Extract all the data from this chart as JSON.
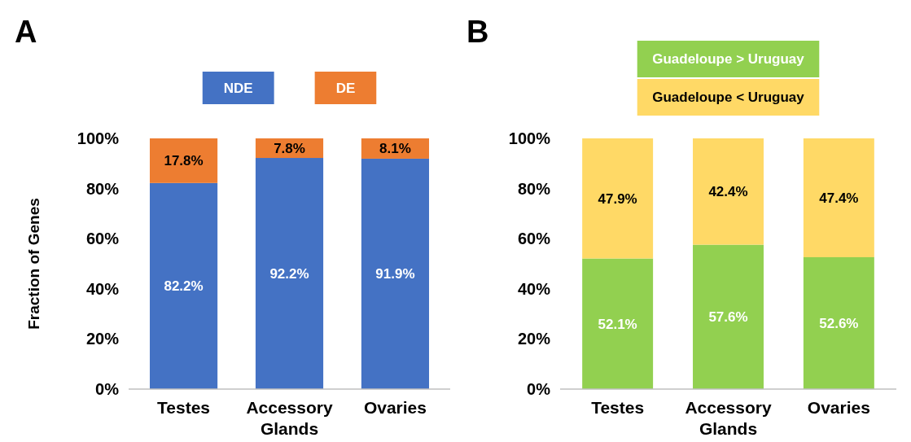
{
  "chart_data": [
    {
      "type": "bar",
      "title": "A",
      "ylabel": "Fraction of Genes",
      "categories": [
        "Testes",
        "Accessory Glands",
        "Ovaries"
      ],
      "stacked": true,
      "data_labels": true,
      "legend": "top",
      "ylim": [
        0,
        100
      ],
      "yticks": [
        {
          "value": 0,
          "label": "0%"
        },
        {
          "value": 20,
          "label": "20%"
        },
        {
          "value": 40,
          "label": "40%"
        },
        {
          "value": 60,
          "label": "60%"
        },
        {
          "value": 80,
          "label": "80%"
        },
        {
          "value": 100,
          "label": "100%"
        }
      ],
      "series": [
        {
          "name": "NDE",
          "color": "#4472c4",
          "values": [
            82.2,
            92.2,
            91.9
          ],
          "value_labels": [
            "82.2%",
            "92.2%",
            "91.9%"
          ]
        },
        {
          "name": "DE",
          "color": "#ed7d31",
          "values": [
            17.8,
            7.8,
            8.1
          ],
          "value_labels": [
            "17.8%",
            "7.8%",
            "8.1%"
          ]
        }
      ]
    },
    {
      "type": "bar",
      "title": "B",
      "categories": [
        "Testes",
        "Accessory Glands",
        "Ovaries"
      ],
      "stacked": true,
      "data_labels": true,
      "legend": "top",
      "ylim": [
        0,
        100
      ],
      "yticks": [
        {
          "value": 0,
          "label": "0%"
        },
        {
          "value": 20,
          "label": "20%"
        },
        {
          "value": 40,
          "label": "40%"
        },
        {
          "value": 60,
          "label": "60%"
        },
        {
          "value": 80,
          "label": "80%"
        },
        {
          "value": 100,
          "label": "100%"
        }
      ],
      "series": [
        {
          "name": "Guadeloupe > Uruguay",
          "color": "#92d050",
          "values": [
            52.1,
            57.6,
            52.6
          ],
          "value_labels": [
            "52.1%",
            "57.6%",
            "52.6%"
          ]
        },
        {
          "name": "Guadeloupe < Uruguay",
          "color": "#ffd966",
          "values": [
            47.9,
            42.4,
            47.4
          ],
          "value_labels": [
            "47.9%",
            "42.4%",
            "47.4%"
          ]
        }
      ]
    }
  ]
}
